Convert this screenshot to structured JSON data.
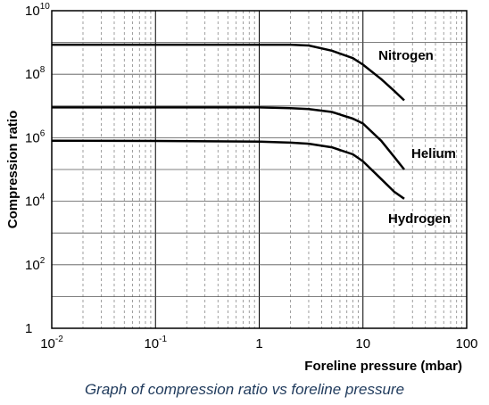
{
  "chart_data": {
    "type": "line",
    "ylabel": "Compression ratio",
    "xlabel": "Foreline pressure (mbar)",
    "caption": "Graph of compression ratio vs foreline pressure",
    "x_scale": "log",
    "y_scale": "log",
    "xlim": [
      0.01,
      100
    ],
    "ylim": [
      1,
      10000000000
    ],
    "grid": true,
    "x_ticks": [
      {
        "base": "10",
        "exp": "-2"
      },
      {
        "base": "10",
        "exp": "-1"
      },
      {
        "base": "1",
        "exp": ""
      },
      {
        "base": "10",
        "exp": ""
      },
      {
        "base": "100",
        "exp": ""
      }
    ],
    "y_ticks": [
      {
        "base": "1",
        "exp": ""
      },
      {
        "base": "10",
        "exp": "2"
      },
      {
        "base": "10",
        "exp": "4"
      },
      {
        "base": "10",
        "exp": "6"
      },
      {
        "base": "10",
        "exp": "8"
      },
      {
        "base": "10",
        "exp": "10"
      }
    ],
    "series": [
      {
        "name": "Nitrogen",
        "x": [
          0.01,
          0.1,
          1,
          2,
          3,
          5,
          8,
          10,
          15,
          20,
          25
        ],
        "y": [
          850000000.0,
          850000000.0,
          850000000.0,
          850000000.0,
          800000000.0,
          550000000.0,
          320000000.0,
          200000000.0,
          70000000.0,
          30000000.0,
          15000000.0
        ]
      },
      {
        "name": "Helium",
        "x": [
          0.01,
          0.1,
          1,
          2,
          3,
          5,
          8,
          10,
          15,
          20,
          25
        ],
        "y": [
          9000000.0,
          9000000.0,
          9000000.0,
          8500000.0,
          8000000.0,
          6500000.0,
          4000000.0,
          2800000.0,
          800000.0,
          250000.0,
          100000.0
        ]
      },
      {
        "name": "Hydrogen",
        "x": [
          0.01,
          0.1,
          1,
          2,
          3,
          5,
          8,
          10,
          15,
          20,
          25
        ],
        "y": [
          800000.0,
          790000.0,
          750000.0,
          700000.0,
          650000.0,
          500000.0,
          300000.0,
          180000.0,
          50000.0,
          20000.0,
          12000.0
        ]
      }
    ]
  }
}
